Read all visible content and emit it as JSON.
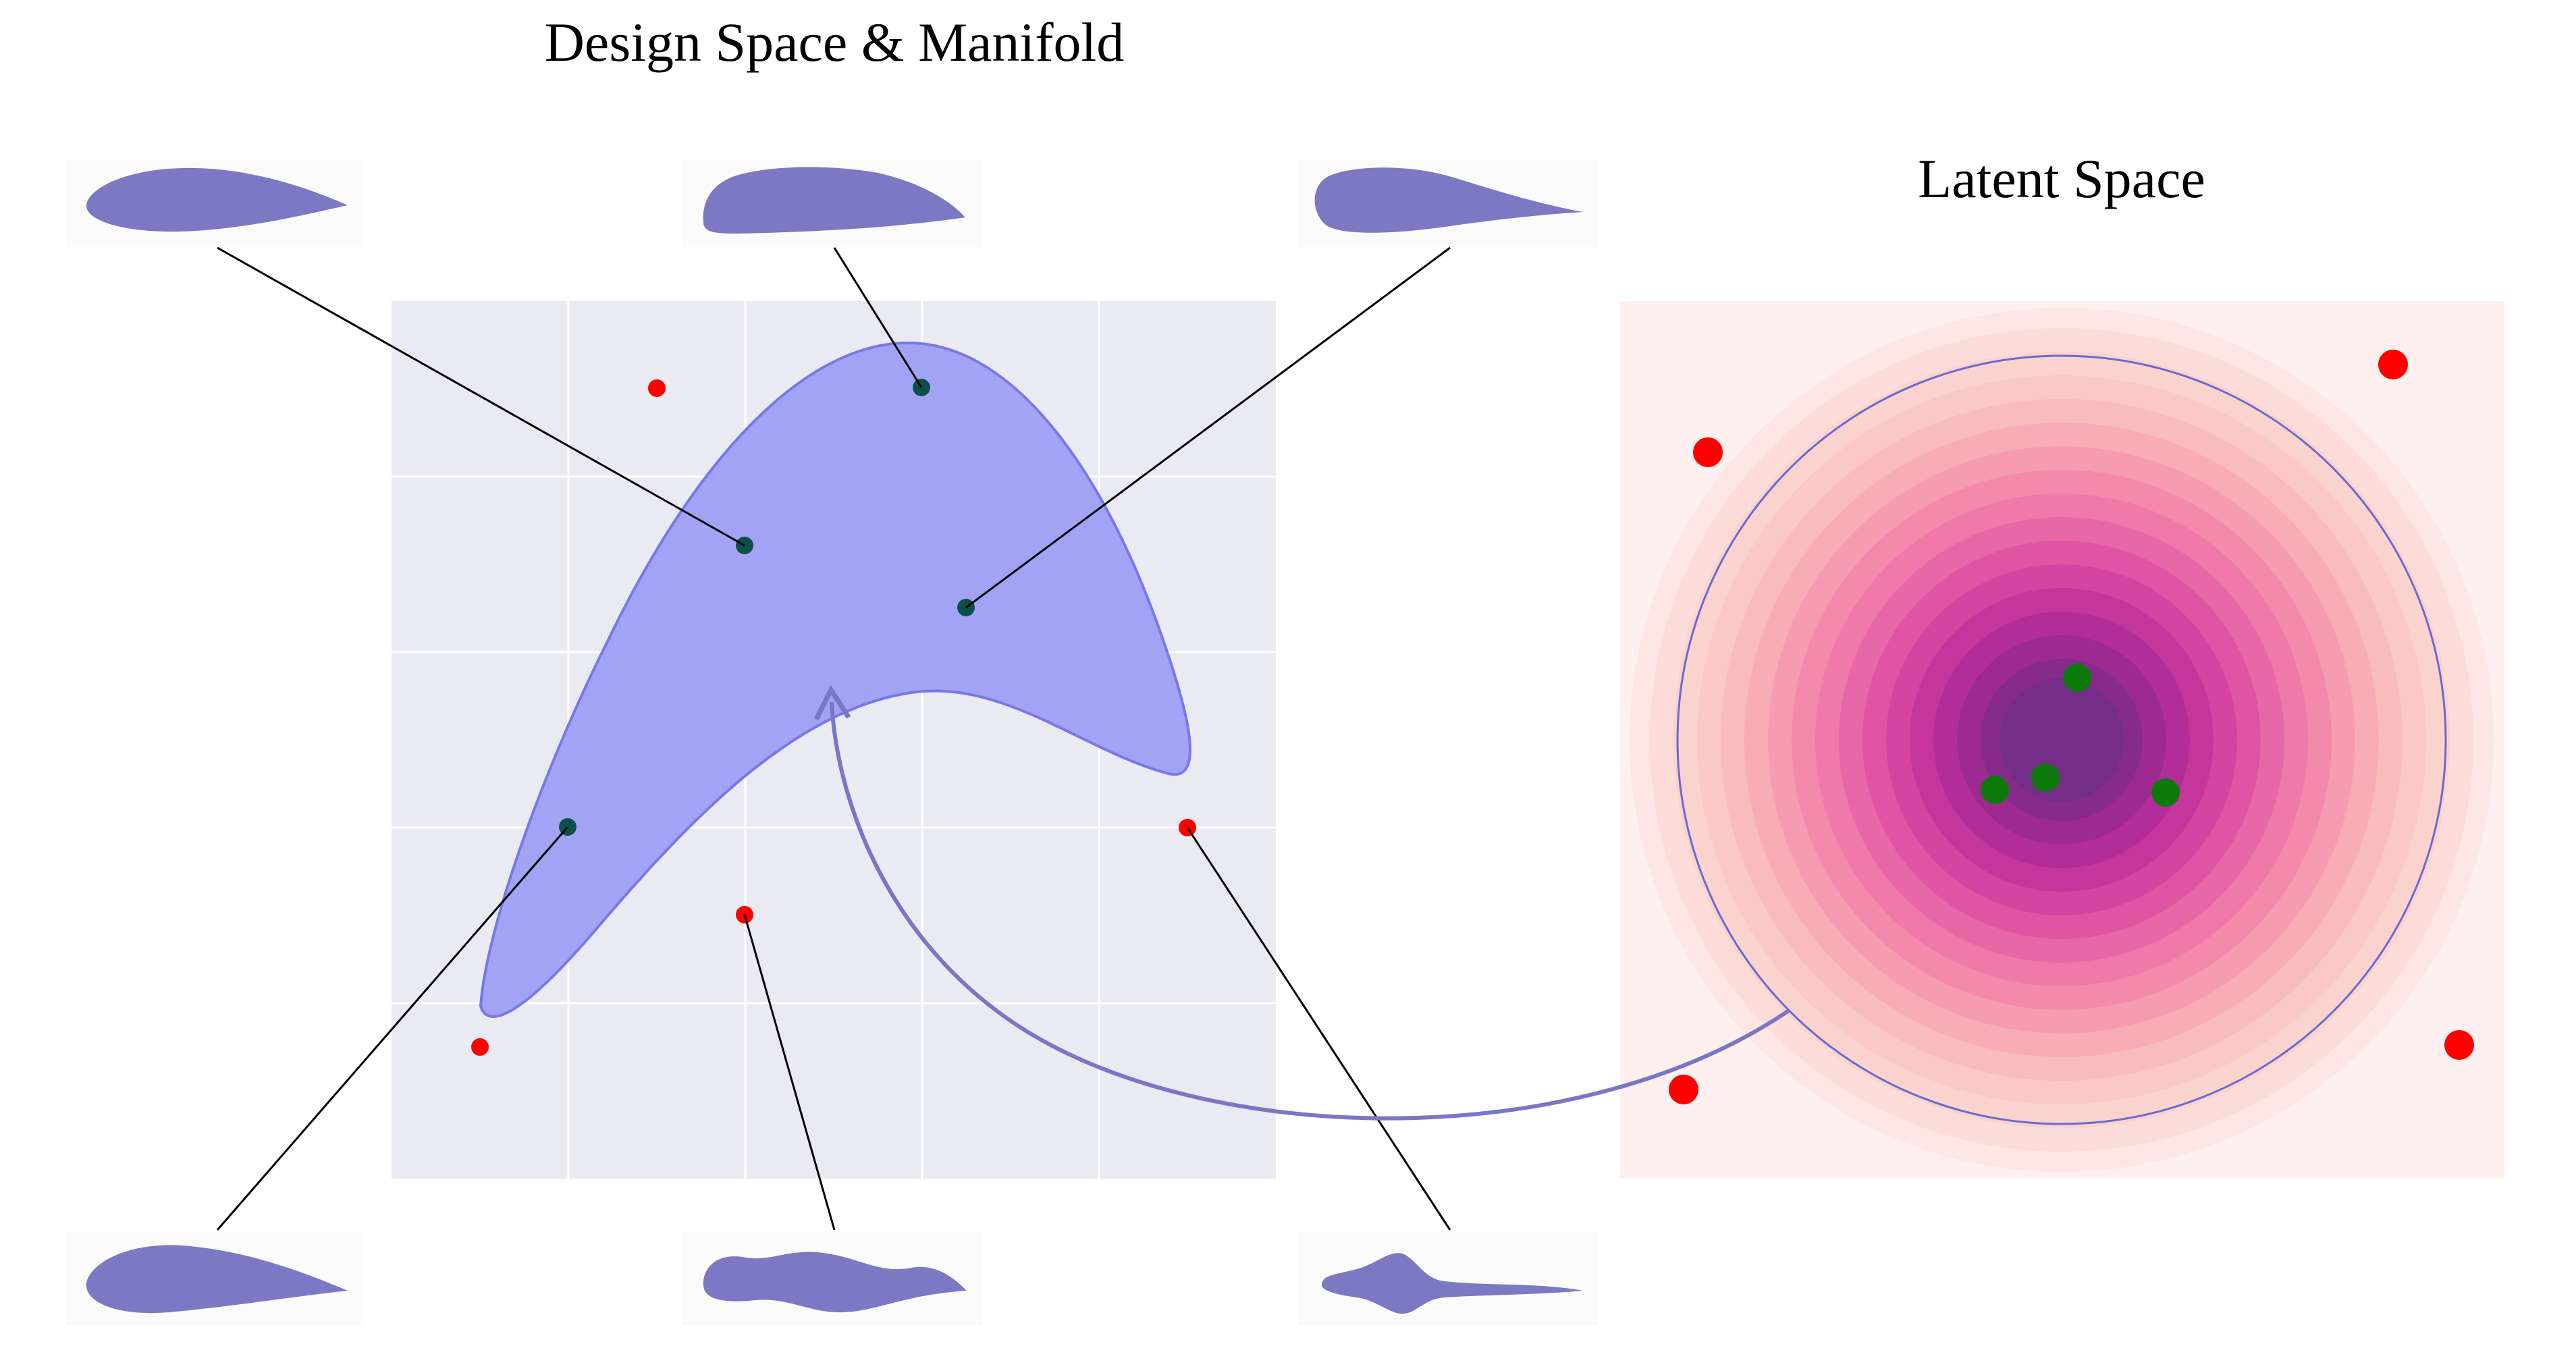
{
  "titles": {
    "design": "Design Space & Manifold",
    "latent": "Latent Space"
  },
  "colors": {
    "panel_bg": "#eaeaf2",
    "grid": "#ffffff",
    "manifold_fill": "#a3a3f5",
    "manifold_edge": "#7878e8",
    "airfoil": "#7b78c4",
    "valid_point": "#0b4f4a",
    "invalid_point": "#ff0000",
    "latent_valid": "#0b7a0b",
    "latent_invalid": "#ff0000",
    "latent_circle": "#6a6ad0",
    "arrow": "#7a76c6",
    "leader": "#000000"
  },
  "airfoils": [
    {
      "id": "top-left",
      "kind": "smooth",
      "state": "valid"
    },
    {
      "id": "top-center",
      "kind": "thick",
      "state": "valid"
    },
    {
      "id": "top-right",
      "kind": "reflex",
      "state": "valid"
    },
    {
      "id": "bottom-left",
      "kind": "smooth",
      "state": "valid"
    },
    {
      "id": "bottom-center",
      "kind": "wavy",
      "state": "invalid"
    },
    {
      "id": "bottom-right",
      "kind": "spiky",
      "state": "invalid"
    }
  ],
  "design_points": {
    "valid_count": 4,
    "invalid_count": 4
  },
  "latent_points": {
    "valid_count": 4,
    "invalid_count": 4
  }
}
